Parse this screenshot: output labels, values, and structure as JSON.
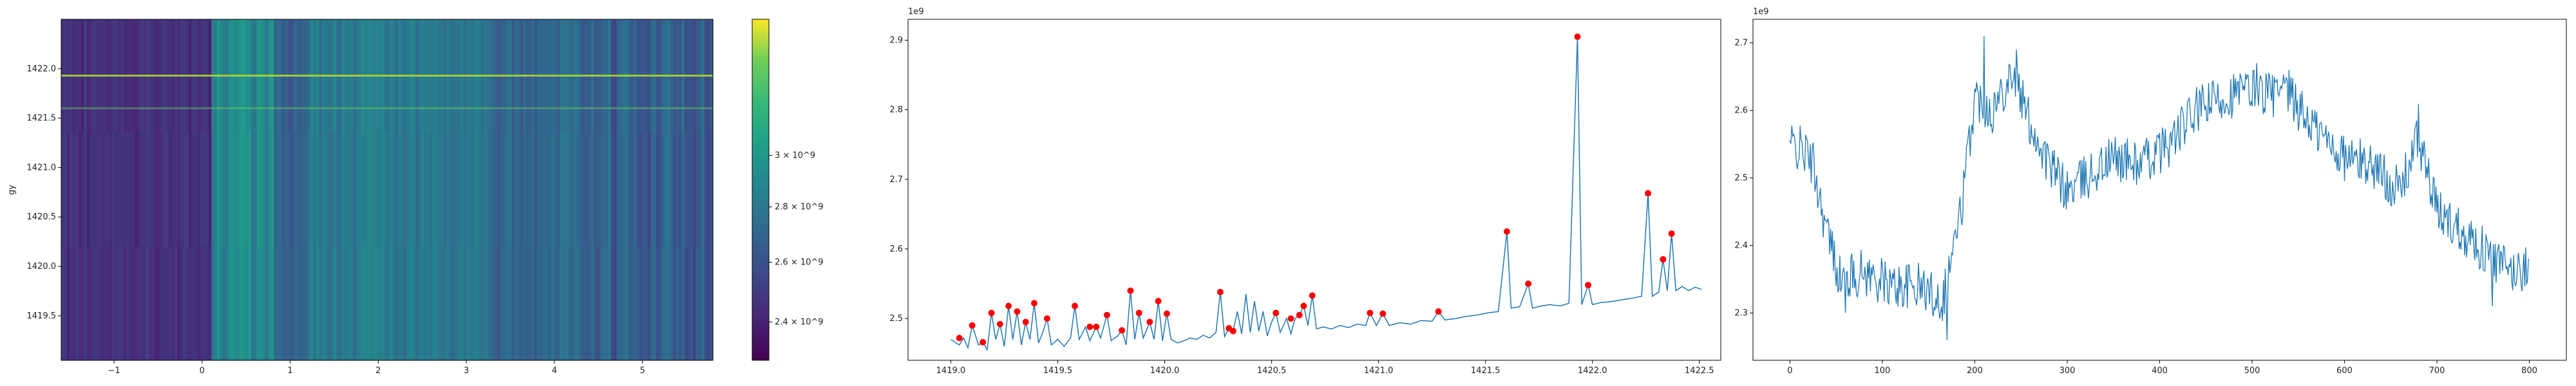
{
  "chart_data": [
    {
      "type": "heatmap",
      "ylabel": "gy",
      "xlim": [
        -1.6,
        5.8
      ],
      "ylim": [
        1419.05,
        1422.5
      ],
      "x_ticks": [
        "-1",
        "0",
        "1",
        "2",
        "3",
        "4",
        "5"
      ],
      "y_ticks": [
        "1419.5",
        "1420.0",
        "1420.5",
        "1421.0",
        "1421.5",
        "1422.0"
      ],
      "colormap": "viridis",
      "colorbar": {
        "scale": "log",
        "range": [
          2280000000.0,
          3600000000.0
        ],
        "ticks": [
          {
            "value": 2400000000.0,
            "label": "2.4 × 10^9"
          },
          {
            "value": 2600000000.0,
            "label": "2.6 × 10^9"
          },
          {
            "value": 2800000000.0,
            "label": "2.8 × 10^9"
          },
          {
            "value": 3000000000.0,
            "label": "3 × 10^9"
          }
        ]
      },
      "bright_rows_y": [
        1421.93,
        1421.6
      ]
    },
    {
      "type": "line",
      "offset_text": "1e9",
      "xlim": [
        1418.8,
        1422.6
      ],
      "ylim": [
        2.44,
        2.93
      ],
      "x_ticks": [
        "1419.0",
        "1419.5",
        "1420.0",
        "1420.5",
        "1421.0",
        "1421.5",
        "1422.0",
        "1422.5"
      ],
      "y_ticks": [
        "2.5",
        "2.6",
        "2.7",
        "2.8",
        "2.9"
      ],
      "line_color": "#1f77b4",
      "marker_color": "#ff0000",
      "points": [
        [
          1419.0,
          2.47
        ],
        [
          1419.04,
          2.462
        ],
        [
          1419.06,
          2.472
        ],
        [
          1419.08,
          2.458
        ],
        [
          1419.1,
          2.49
        ],
        [
          1419.13,
          2.462
        ],
        [
          1419.15,
          2.466
        ],
        [
          1419.17,
          2.455
        ],
        [
          1419.19,
          2.508
        ],
        [
          1419.21,
          2.47
        ],
        [
          1419.23,
          2.492
        ],
        [
          1419.25,
          2.46
        ],
        [
          1419.27,
          2.518
        ],
        [
          1419.29,
          2.47
        ],
        [
          1419.31,
          2.51
        ],
        [
          1419.33,
          2.462
        ],
        [
          1419.35,
          2.495
        ],
        [
          1419.37,
          2.47
        ],
        [
          1419.39,
          2.522
        ],
        [
          1419.41,
          2.465
        ],
        [
          1419.43,
          2.48
        ],
        [
          1419.45,
          2.5
        ],
        [
          1419.47,
          2.462
        ],
        [
          1419.5,
          2.47
        ],
        [
          1419.53,
          2.46
        ],
        [
          1419.56,
          2.472
        ],
        [
          1419.58,
          2.518
        ],
        [
          1419.6,
          2.47
        ],
        [
          1419.63,
          2.488
        ],
        [
          1419.65,
          2.468
        ],
        [
          1419.68,
          2.488
        ],
        [
          1419.7,
          2.472
        ],
        [
          1419.73,
          2.505
        ],
        [
          1419.75,
          2.468
        ],
        [
          1419.78,
          2.475
        ],
        [
          1419.8,
          2.483
        ],
        [
          1419.82,
          2.462
        ],
        [
          1419.84,
          2.54
        ],
        [
          1419.86,
          2.47
        ],
        [
          1419.88,
          2.508
        ],
        [
          1419.9,
          2.472
        ],
        [
          1419.93,
          2.495
        ],
        [
          1419.95,
          2.47
        ],
        [
          1419.97,
          2.525
        ],
        [
          1419.99,
          2.468
        ],
        [
          1420.01,
          2.507
        ],
        [
          1420.03,
          2.47
        ],
        [
          1420.06,
          2.465
        ],
        [
          1420.09,
          2.468
        ],
        [
          1420.12,
          2.472
        ],
        [
          1420.15,
          2.47
        ],
        [
          1420.18,
          2.476
        ],
        [
          1420.21,
          2.472
        ],
        [
          1420.24,
          2.48
        ],
        [
          1420.26,
          2.538
        ],
        [
          1420.28,
          2.474
        ],
        [
          1420.3,
          2.486
        ],
        [
          1420.32,
          2.482
        ],
        [
          1420.34,
          2.51
        ],
        [
          1420.36,
          2.478
        ],
        [
          1420.38,
          2.535
        ],
        [
          1420.4,
          2.48
        ],
        [
          1420.42,
          2.525
        ],
        [
          1420.44,
          2.482
        ],
        [
          1420.46,
          2.51
        ],
        [
          1420.48,
          2.475
        ],
        [
          1420.5,
          2.495
        ],
        [
          1420.52,
          2.508
        ],
        [
          1420.54,
          2.48
        ],
        [
          1420.57,
          2.5
        ],
        [
          1420.59,
          2.478
        ],
        [
          1420.61,
          2.5
        ],
        [
          1420.63,
          2.505
        ],
        [
          1420.65,
          2.518
        ],
        [
          1420.67,
          2.49
        ],
        [
          1420.69,
          2.533
        ],
        [
          1420.71,
          2.485
        ],
        [
          1420.74,
          2.488
        ],
        [
          1420.78,
          2.485
        ],
        [
          1420.82,
          2.49
        ],
        [
          1420.86,
          2.487
        ],
        [
          1420.9,
          2.492
        ],
        [
          1420.94,
          2.49
        ],
        [
          1420.96,
          2.508
        ],
        [
          1420.99,
          2.49
        ],
        [
          1421.02,
          2.507
        ],
        [
          1421.05,
          2.49
        ],
        [
          1421.1,
          2.494
        ],
        [
          1421.15,
          2.492
        ],
        [
          1421.2,
          2.497
        ],
        [
          1421.25,
          2.496
        ],
        [
          1421.28,
          2.51
        ],
        [
          1421.31,
          2.498
        ],
        [
          1421.36,
          2.5
        ],
        [
          1421.41,
          2.503
        ],
        [
          1421.46,
          2.505
        ],
        [
          1421.51,
          2.508
        ],
        [
          1421.56,
          2.51
        ],
        [
          1421.6,
          2.625
        ],
        [
          1421.62,
          2.515
        ],
        [
          1421.66,
          2.517
        ],
        [
          1421.7,
          2.55
        ],
        [
          1421.72,
          2.515
        ],
        [
          1421.76,
          2.518
        ],
        [
          1421.8,
          2.52
        ],
        [
          1421.85,
          2.518
        ],
        [
          1421.89,
          2.522
        ],
        [
          1421.93,
          2.905
        ],
        [
          1421.95,
          2.52
        ],
        [
          1421.98,
          2.548
        ],
        [
          1422.0,
          2.52
        ],
        [
          1422.04,
          2.523
        ],
        [
          1422.08,
          2.524
        ],
        [
          1422.12,
          2.526
        ],
        [
          1422.16,
          2.528
        ],
        [
          1422.2,
          2.53
        ],
        [
          1422.23,
          2.532
        ],
        [
          1422.26,
          2.68
        ],
        [
          1422.28,
          2.532
        ],
        [
          1422.31,
          2.538
        ],
        [
          1422.33,
          2.585
        ],
        [
          1422.35,
          2.54
        ],
        [
          1422.37,
          2.622
        ],
        [
          1422.39,
          2.54
        ],
        [
          1422.42,
          2.546
        ],
        [
          1422.45,
          2.54
        ],
        [
          1422.48,
          2.545
        ],
        [
          1422.51,
          2.542
        ]
      ],
      "peaks": [
        [
          1419.04,
          2.472
        ],
        [
          1419.1,
          2.49
        ],
        [
          1419.15,
          2.466
        ],
        [
          1419.19,
          2.508
        ],
        [
          1419.23,
          2.492
        ],
        [
          1419.27,
          2.518
        ],
        [
          1419.31,
          2.51
        ],
        [
          1419.35,
          2.495
        ],
        [
          1419.39,
          2.522
        ],
        [
          1419.45,
          2.5
        ],
        [
          1419.58,
          2.518
        ],
        [
          1419.65,
          2.488
        ],
        [
          1419.68,
          2.488
        ],
        [
          1419.73,
          2.505
        ],
        [
          1419.8,
          2.483
        ],
        [
          1419.84,
          2.54
        ],
        [
          1419.88,
          2.508
        ],
        [
          1419.93,
          2.495
        ],
        [
          1419.97,
          2.525
        ],
        [
          1420.01,
          2.507
        ],
        [
          1420.26,
          2.538
        ],
        [
          1420.3,
          2.486
        ],
        [
          1420.32,
          2.482
        ],
        [
          1420.52,
          2.508
        ],
        [
          1420.59,
          2.5
        ],
        [
          1420.63,
          2.505
        ],
        [
          1420.65,
          2.518
        ],
        [
          1420.69,
          2.533
        ],
        [
          1420.96,
          2.508
        ],
        [
          1421.02,
          2.507
        ],
        [
          1421.28,
          2.51
        ],
        [
          1421.6,
          2.625
        ],
        [
          1421.7,
          2.55
        ],
        [
          1421.93,
          2.905
        ],
        [
          1421.98,
          2.548
        ],
        [
          1422.26,
          2.68
        ],
        [
          1422.33,
          2.585
        ],
        [
          1422.37,
          2.622
        ]
      ]
    },
    {
      "type": "line",
      "offset_text": "1e9",
      "xlim": [
        -40,
        840
      ],
      "ylim": [
        2.23,
        2.735
      ],
      "x_ticks": [
        "0",
        "100",
        "200",
        "300",
        "400",
        "500",
        "600",
        "700",
        "800"
      ],
      "y_ticks": [
        "2.3",
        "2.4",
        "2.5",
        "2.6",
        "2.7"
      ],
      "line_color": "#1f77b4",
      "n_points": 800,
      "trend_keypoints": [
        [
          0,
          2.55
        ],
        [
          15,
          2.54
        ],
        [
          25,
          2.52
        ],
        [
          40,
          2.42
        ],
        [
          55,
          2.35
        ],
        [
          80,
          2.36
        ],
        [
          110,
          2.34
        ],
        [
          140,
          2.34
        ],
        [
          165,
          2.32
        ],
        [
          185,
          2.45
        ],
        [
          200,
          2.62
        ],
        [
          220,
          2.6
        ],
        [
          240,
          2.66
        ],
        [
          260,
          2.58
        ],
        [
          280,
          2.52
        ],
        [
          300,
          2.48
        ],
        [
          320,
          2.5
        ],
        [
          350,
          2.53
        ],
        [
          380,
          2.52
        ],
        [
          410,
          2.55
        ],
        [
          440,
          2.6
        ],
        [
          470,
          2.62
        ],
        [
          500,
          2.63
        ],
        [
          540,
          2.62
        ],
        [
          570,
          2.57
        ],
        [
          600,
          2.53
        ],
        [
          630,
          2.52
        ],
        [
          660,
          2.48
        ],
        [
          680,
          2.56
        ],
        [
          700,
          2.45
        ],
        [
          730,
          2.42
        ],
        [
          760,
          2.38
        ],
        [
          780,
          2.36
        ],
        [
          800,
          2.37
        ]
      ],
      "noise_amplitude": 0.035,
      "spikes": [
        [
          210,
          2.71
        ],
        [
          245,
          2.69
        ],
        [
          505,
          2.67
        ],
        [
          540,
          2.66
        ],
        [
          680,
          2.61
        ],
        [
          170,
          2.26
        ],
        [
          60,
          2.3
        ],
        [
          760,
          2.31
        ]
      ]
    }
  ]
}
